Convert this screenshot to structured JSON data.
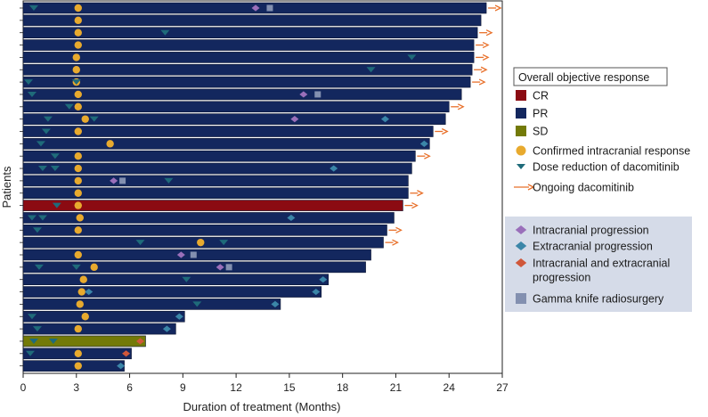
{
  "chart_data": {
    "type": "swimmer",
    "xlabel": "Duration of treatment (Months)",
    "ylabel": "Patients",
    "xlim": [
      0,
      27
    ],
    "xticks": [
      0,
      3,
      6,
      9,
      12,
      15,
      18,
      21,
      24,
      27
    ],
    "xtick_labels": [
      "0",
      "3",
      "6",
      "9",
      "12",
      "15",
      "18",
      "21",
      "24",
      "27"
    ],
    "legend1": {
      "title": "Overall objective response",
      "items": [
        {
          "label": "CR",
          "symbol": "square",
          "color": "#8b0b12"
        },
        {
          "label": "PR",
          "symbol": "square",
          "color": "#13275e"
        },
        {
          "label": "SD",
          "symbol": "square",
          "color": "#737a08"
        },
        {
          "label": "Confirmed intracranial response",
          "symbol": "circle",
          "color": "#e8aa2e"
        },
        {
          "label": "Dose reduction of dacomitinib",
          "symbol": "triangle-down",
          "color": "#1f6b7a"
        },
        {
          "label": "Ongoing dacomitinib",
          "symbol": "arrow",
          "color": "#e8702a"
        }
      ]
    },
    "legend2": {
      "items": [
        {
          "label": "Intracranial progression",
          "symbol": "diamond",
          "color": "#9a6fba"
        },
        {
          "label": "Extracranial progression",
          "symbol": "diamond",
          "color": "#3b86a8"
        },
        {
          "label": "Intracranial and extracranial progression",
          "label_lines": [
            "Intracranial and extracranial",
            "progression"
          ],
          "symbol": "diamond",
          "color": "#d0573a"
        },
        {
          "label": "Gamma knife radiosurgery",
          "symbol": "square",
          "color": "#8390b0"
        }
      ]
    },
    "colors": {
      "PR": "#13275e",
      "CR": "#8b0b12",
      "SD": "#737a08",
      "response": "#e8aa2e",
      "dose": "#1f6b7a",
      "arrow": "#e8702a",
      "ic_prog": "#9a6fba",
      "ec_prog": "#3b86a8",
      "both_prog": "#d0573a",
      "gamma": "#8390b0",
      "legend2_bg": "#d5dbe8"
    },
    "patients": [
      {
        "duration": 26.1,
        "response": "PR",
        "ongoing": true,
        "icr": [
          3.1
        ],
        "dose": [
          0.6
        ],
        "ic_prog": [
          13.1
        ],
        "gamma": [
          13.9
        ]
      },
      {
        "duration": 25.8,
        "response": "PR",
        "ongoing": false,
        "icr": [
          3.1
        ]
      },
      {
        "duration": 25.6,
        "response": "PR",
        "ongoing": true,
        "icr": [
          3.1
        ],
        "dose": [
          8.0
        ]
      },
      {
        "duration": 25.4,
        "response": "PR",
        "ongoing": true,
        "icr": [
          3.1
        ]
      },
      {
        "duration": 25.4,
        "response": "PR",
        "ongoing": true,
        "icr": [
          3.0
        ],
        "dose": [
          21.9
        ]
      },
      {
        "duration": 25.3,
        "response": "PR",
        "ongoing": true,
        "icr": [
          3.0
        ],
        "dose": [
          19.6
        ]
      },
      {
        "duration": 25.2,
        "response": "PR",
        "ongoing": true,
        "icr": [
          3.0
        ],
        "dose": [
          0.3,
          3.0
        ]
      },
      {
        "duration": 24.7,
        "response": "PR",
        "ongoing": false,
        "icr": [
          3.1
        ],
        "dose": [
          0.5
        ],
        "ic_prog": [
          15.8
        ],
        "gamma": [
          16.6
        ]
      },
      {
        "duration": 24.0,
        "response": "PR",
        "ongoing": true,
        "icr": [
          3.1
        ],
        "dose": [
          2.6
        ]
      },
      {
        "duration": 23.8,
        "response": "PR",
        "ongoing": false,
        "icr": [
          3.5
        ],
        "dose": [
          1.4,
          4.0
        ],
        "ic_prog": [
          15.3
        ],
        "ec_prog": [
          20.4
        ]
      },
      {
        "duration": 23.1,
        "response": "PR",
        "ongoing": true,
        "icr": [
          3.1
        ],
        "dose": [
          1.3
        ]
      },
      {
        "duration": 22.9,
        "response": "PR",
        "ongoing": false,
        "icr": [
          4.9
        ],
        "dose": [
          1.0
        ],
        "ec_prog": [
          22.6
        ]
      },
      {
        "duration": 22.1,
        "response": "PR",
        "ongoing": true,
        "icr": [
          3.1
        ],
        "dose": [
          1.8
        ]
      },
      {
        "duration": 21.9,
        "response": "PR",
        "ongoing": false,
        "icr": [
          3.1
        ],
        "dose": [
          1.1,
          1.8
        ],
        "ec_prog": [
          17.5
        ]
      },
      {
        "duration": 21.7,
        "response": "PR",
        "ongoing": false,
        "icr": [
          3.1
        ],
        "dose": [
          8.2
        ],
        "ic_prog": [
          5.1
        ],
        "gamma": [
          5.6
        ]
      },
      {
        "duration": 21.7,
        "response": "PR",
        "ongoing": true,
        "icr": [
          3.1
        ]
      },
      {
        "duration": 21.4,
        "response": "CR",
        "ongoing": true,
        "icr": [
          3.1
        ],
        "dose": [
          1.9
        ]
      },
      {
        "duration": 20.9,
        "response": "PR",
        "ongoing": false,
        "icr": [
          3.2
        ],
        "dose": [
          0.5,
          1.1
        ],
        "ec_prog": [
          15.1
        ]
      },
      {
        "duration": 20.5,
        "response": "PR",
        "ongoing": true,
        "icr": [
          3.1
        ],
        "dose": [
          0.8
        ]
      },
      {
        "duration": 20.3,
        "response": "PR",
        "ongoing": true,
        "icr": [
          10.0
        ],
        "dose": [
          6.6,
          11.3
        ]
      },
      {
        "duration": 19.6,
        "response": "PR",
        "ongoing": false,
        "icr": [
          3.1
        ],
        "ic_prog": [
          8.9
        ],
        "gamma": [
          9.6
        ]
      },
      {
        "duration": 19.3,
        "response": "PR",
        "ongoing": false,
        "icr": [
          4.0
        ],
        "dose": [
          0.9,
          3.0
        ],
        "ic_prog": [
          11.1
        ],
        "gamma": [
          11.6
        ]
      },
      {
        "duration": 17.2,
        "response": "PR",
        "ongoing": false,
        "icr": [
          3.4
        ],
        "dose": [
          9.2
        ],
        "ec_prog": [
          16.9
        ]
      },
      {
        "duration": 16.8,
        "response": "PR",
        "ongoing": false,
        "icr": [
          3.3
        ],
        "ec_prog": [
          3.7,
          16.5
        ]
      },
      {
        "duration": 14.5,
        "response": "PR",
        "ongoing": false,
        "icr": [
          3.2
        ],
        "dose": [
          9.8
        ],
        "ec_prog": [
          14.2
        ]
      },
      {
        "duration": 9.1,
        "response": "PR",
        "ongoing": false,
        "icr": [
          3.5
        ],
        "dose": [
          0.5
        ],
        "ec_prog": [
          8.8
        ]
      },
      {
        "duration": 8.6,
        "response": "PR",
        "ongoing": false,
        "icr": [
          3.1
        ],
        "dose": [
          0.8
        ],
        "ec_prog": [
          8.1
        ]
      },
      {
        "duration": 6.9,
        "response": "SD",
        "ongoing": false,
        "dose": [
          0.6,
          1.7
        ],
        "both_prog": [
          6.6
        ]
      },
      {
        "duration": 6.1,
        "response": "PR",
        "ongoing": false,
        "icr": [
          3.1
        ],
        "dose": [
          0.4
        ],
        "both_prog": [
          5.8
        ]
      },
      {
        "duration": 5.7,
        "response": "PR",
        "ongoing": false,
        "icr": [
          3.1
        ],
        "ec_prog": [
          5.5
        ]
      }
    ]
  }
}
